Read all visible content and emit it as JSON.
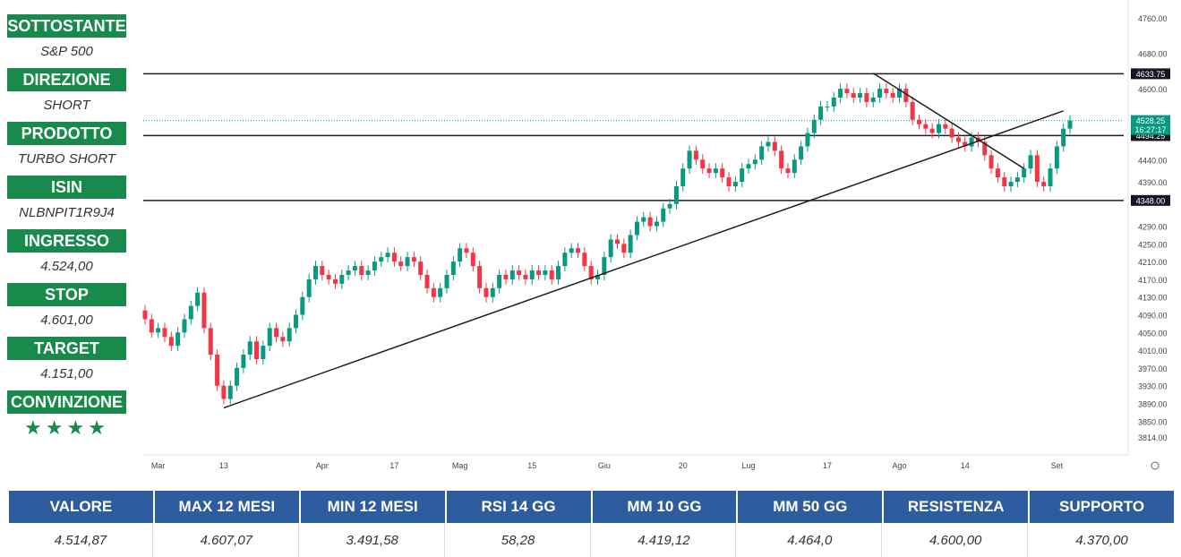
{
  "sidebar": [
    {
      "label": "SOTTOSTANTE",
      "value": "S&P 500"
    },
    {
      "label": "DIREZIONE",
      "value": "SHORT"
    },
    {
      "label": "PRODOTTO",
      "value": "TURBO SHORT"
    },
    {
      "label": "ISIN",
      "value": "NLBNPIT1R9J4"
    },
    {
      "label": "INGRESSO",
      "value": "4.524,00"
    },
    {
      "label": "STOP",
      "value": "4.601,00"
    },
    {
      "label": "TARGET",
      "value": "4.151,00"
    },
    {
      "label": "CONVINZIONE",
      "value": "★★★★"
    }
  ],
  "stats": {
    "headers": [
      "VALORE",
      "MAX 12 MESI",
      "MIN 12 MESI",
      "RSI 14 GG",
      "MM 10 GG",
      "MM 50 GG",
      "RESISTENZA",
      "SUPPORTO"
    ],
    "values": [
      "4.514,87",
      "4.607,07",
      "3.491,58",
      "58,28",
      "4.419,12",
      "4.464,0",
      "4.600,00",
      "4.370,00"
    ]
  },
  "colors": {
    "green": "#089981",
    "red": "#f23645",
    "sidebar_green": "#178a4c",
    "header_blue": "#2d5d9e"
  },
  "chart_data": {
    "type": "candlestick",
    "instrument": "S&P 500",
    "ylim": [
      3790,
      4780
    ],
    "y_ticks": [
      4760,
      4680,
      4600,
      4440,
      4390,
      4290,
      4250,
      4210,
      4170,
      4130,
      4090,
      4050,
      4010,
      3970,
      3930,
      3890,
      3850,
      3814
    ],
    "x_ticks": [
      {
        "label": "Mar",
        "i": 2
      },
      {
        "label": "13",
        "i": 12
      },
      {
        "label": "Apr",
        "i": 27
      },
      {
        "label": "17",
        "i": 38
      },
      {
        "label": "Mag",
        "i": 48
      },
      {
        "label": "15",
        "i": 59
      },
      {
        "label": "Giu",
        "i": 70
      },
      {
        "label": "20",
        "i": 82
      },
      {
        "label": "Lug",
        "i": 92
      },
      {
        "label": "17",
        "i": 104
      },
      {
        "label": "Ago",
        "i": 115
      },
      {
        "label": "14",
        "i": 125
      },
      {
        "label": "Set",
        "i": 139
      }
    ],
    "horizontal_levels": [
      {
        "value": 4633.75,
        "label": "4633.75"
      },
      {
        "value": 4494.25,
        "label": "4494.25"
      },
      {
        "value": 4348.0,
        "label": "4348.00"
      }
    ],
    "last_price": {
      "value": 4528.25,
      "label": "4528.25",
      "time": "16:27:17"
    },
    "trendlines": [
      {
        "from": {
          "i": 12,
          "price": 3880
        },
        "to": {
          "i": 140,
          "price": 4550
        }
      },
      {
        "from": {
          "i": 111,
          "price": 4635
        },
        "to": {
          "i": 134,
          "price": 4420
        }
      }
    ],
    "closes": [
      4080,
      4050,
      4060,
      4040,
      4020,
      4050,
      4080,
      4110,
      4140,
      4060,
      4000,
      3930,
      3900,
      3930,
      3970,
      4000,
      4030,
      3990,
      4020,
      4060,
      4040,
      4030,
      4060,
      4090,
      4130,
      4170,
      4200,
      4180,
      4170,
      4160,
      4180,
      4190,
      4200,
      4180,
      4190,
      4210,
      4220,
      4230,
      4210,
      4200,
      4220,
      4210,
      4180,
      4150,
      4130,
      4150,
      4180,
      4210,
      4240,
      4230,
      4200,
      4150,
      4130,
      4150,
      4180,
      4170,
      4190,
      4180,
      4170,
      4190,
      4180,
      4190,
      4170,
      4200,
      4230,
      4240,
      4230,
      4200,
      4170,
      4180,
      4220,
      4260,
      4250,
      4230,
      4270,
      4300,
      4310,
      4290,
      4300,
      4330,
      4340,
      4380,
      4420,
      4460,
      4440,
      4420,
      4410,
      4420,
      4400,
      4380,
      4390,
      4420,
      4430,
      4440,
      4470,
      4480,
      4460,
      4420,
      4410,
      4440,
      4470,
      4500,
      4530,
      4560,
      4560,
      4580,
      4600,
      4590,
      4580,
      4590,
      4570,
      4580,
      4600,
      4590,
      4580,
      4600,
      4570,
      4530,
      4520,
      4510,
      4500,
      4520,
      4510,
      4490,
      4480,
      4470,
      4490,
      4480,
      4450,
      4420,
      4400,
      4380,
      4390,
      4400,
      4420,
      4450,
      4390,
      4380,
      4420,
      4470,
      4510,
      4528
    ]
  }
}
